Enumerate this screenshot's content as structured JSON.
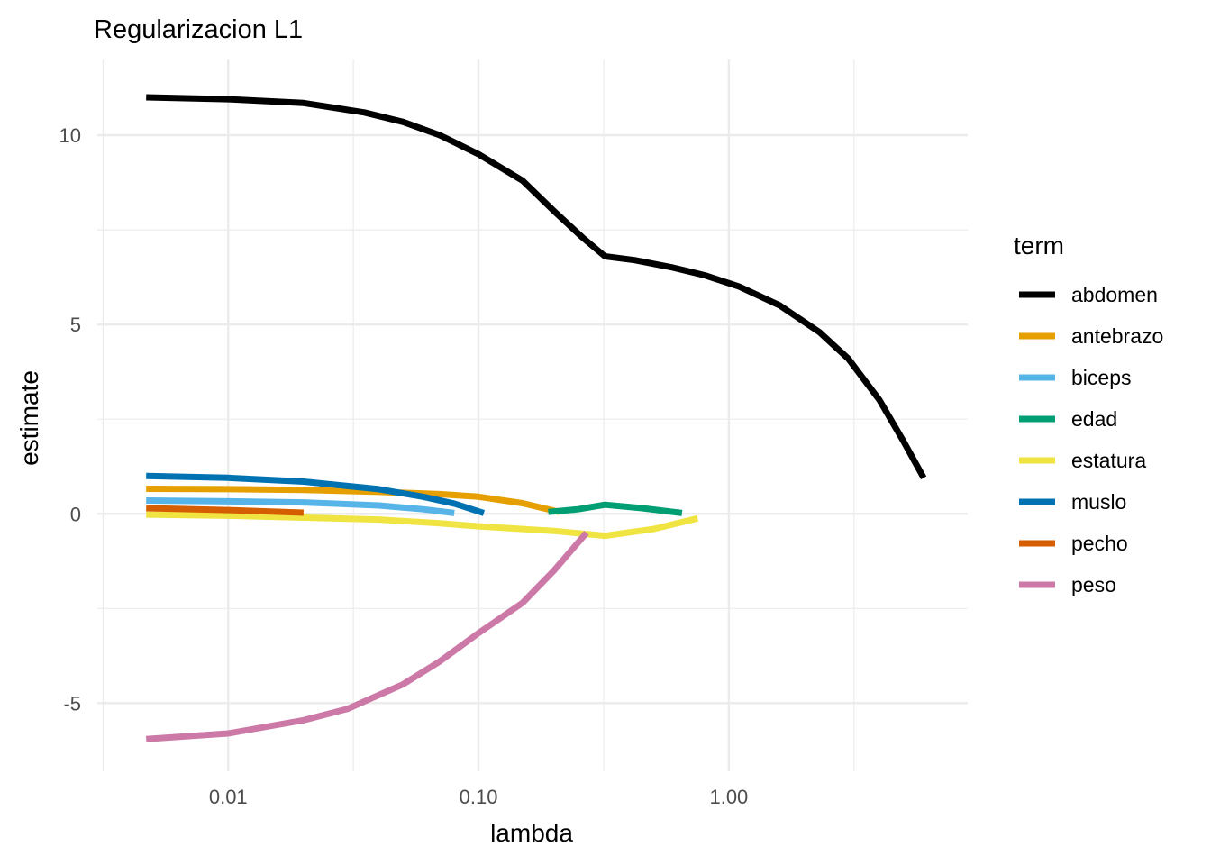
{
  "chart_data": {
    "type": "line",
    "title": "Regularizacion L1",
    "xlabel": "lambda",
    "ylabel": "estimate",
    "x_scale": "log10",
    "xlim": [
      0.003,
      9
    ],
    "ylim": [
      -6.8,
      12.0
    ],
    "x_ticks": [
      0.01,
      0.1,
      1.0
    ],
    "x_tick_labels": [
      "0.01",
      "0.10",
      "1.00"
    ],
    "y_ticks": [
      -5,
      0,
      5,
      10
    ],
    "y_tick_labels": [
      "-5",
      "0",
      "5",
      "10"
    ],
    "grid": true,
    "legend": {
      "title": "term",
      "position": "right"
    },
    "series": [
      {
        "name": "abdomen",
        "color": "#000000",
        "x": [
          0.0047,
          0.01,
          0.02,
          0.035,
          0.05,
          0.07,
          0.1,
          0.15,
          0.2,
          0.26,
          0.32,
          0.42,
          0.6,
          0.8,
          1.1,
          1.6,
          2.3,
          3.0,
          4.0,
          5.0,
          6.0
        ],
        "y": [
          11.0,
          10.95,
          10.85,
          10.6,
          10.35,
          10.0,
          9.5,
          8.8,
          8.0,
          7.3,
          6.8,
          6.7,
          6.5,
          6.3,
          6.0,
          5.5,
          4.8,
          4.1,
          3.0,
          1.9,
          0.95
        ]
      },
      {
        "name": "antebrazo",
        "color": "#E69F00",
        "x": [
          0.0047,
          0.01,
          0.02,
          0.04,
          0.07,
          0.1,
          0.15,
          0.21
        ],
        "y": [
          0.66,
          0.65,
          0.63,
          0.58,
          0.52,
          0.45,
          0.28,
          0.05
        ]
      },
      {
        "name": "biceps",
        "color": "#56B4E9",
        "x": [
          0.0047,
          0.01,
          0.02,
          0.04,
          0.06,
          0.08
        ],
        "y": [
          0.35,
          0.33,
          0.3,
          0.22,
          0.12,
          0.02
        ]
      },
      {
        "name": "edad",
        "color": "#009E73",
        "x": [
          0.19,
          0.25,
          0.32,
          0.45,
          0.65
        ],
        "y": [
          0.05,
          0.12,
          0.24,
          0.15,
          0.02
        ]
      },
      {
        "name": "estatura",
        "color": "#F0E442",
        "x": [
          0.0047,
          0.01,
          0.02,
          0.04,
          0.07,
          0.1,
          0.15,
          0.2,
          0.32,
          0.5,
          0.75
        ],
        "y": [
          -0.02,
          -0.05,
          -0.1,
          -0.15,
          -0.25,
          -0.33,
          -0.4,
          -0.45,
          -0.58,
          -0.4,
          -0.12
        ]
      },
      {
        "name": "muslo",
        "color": "#0072B2",
        "x": [
          0.0047,
          0.01,
          0.02,
          0.04,
          0.06,
          0.08,
          0.105
        ],
        "y": [
          1.0,
          0.95,
          0.85,
          0.65,
          0.45,
          0.27,
          0.02
        ]
      },
      {
        "name": "pecho",
        "color": "#D55E00",
        "x": [
          0.0047,
          0.01,
          0.02
        ],
        "y": [
          0.15,
          0.1,
          0.03
        ]
      },
      {
        "name": "peso",
        "color": "#CC79A7",
        "x": [
          0.0047,
          0.01,
          0.02,
          0.03,
          0.05,
          0.07,
          0.1,
          0.15,
          0.2,
          0.27
        ],
        "y": [
          -5.95,
          -5.8,
          -5.45,
          -5.15,
          -4.5,
          -3.9,
          -3.15,
          -2.35,
          -1.5,
          -0.5
        ]
      }
    ]
  }
}
